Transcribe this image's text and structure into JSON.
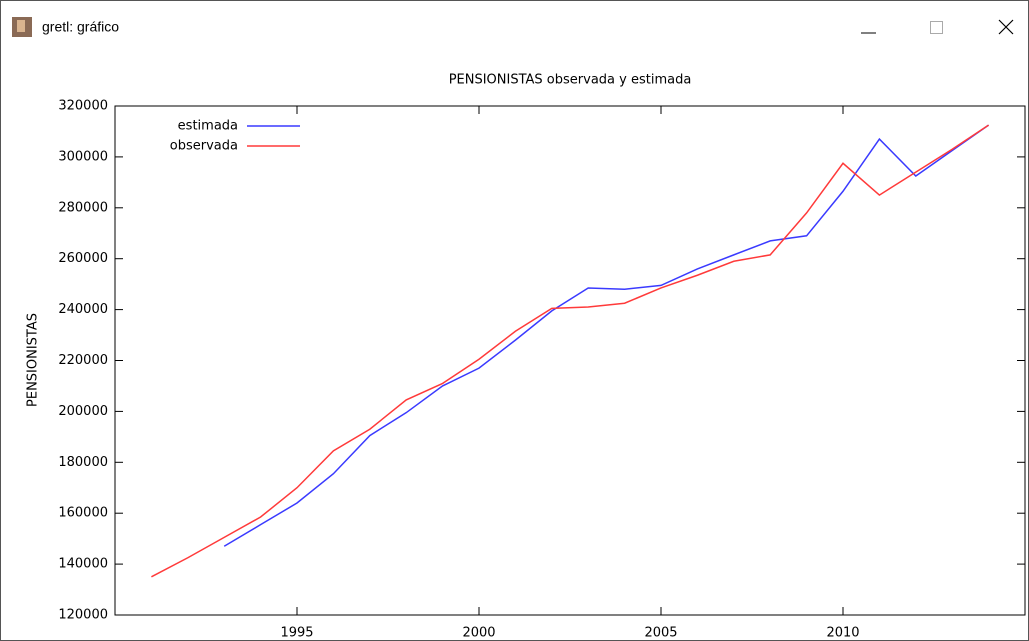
{
  "window": {
    "title": "gretl: gráfico"
  },
  "chart_data": {
    "type": "line",
    "title": "PENSIONISTAS observada y estimada",
    "y_label": "PENSIONISTAS",
    "x": [
      1991,
      1992,
      1993,
      1994,
      1995,
      1996,
      1997,
      1998,
      1999,
      2000,
      2001,
      2002,
      2003,
      2004,
      2005,
      2006,
      2007,
      2008,
      2009,
      2010,
      2011,
      2012,
      2013,
      2014
    ],
    "series": [
      {
        "name": "estimada",
        "color": "#3a3aff",
        "values": [
          null,
          null,
          147000,
          155500,
          164000,
          175500,
          190500,
          199500,
          210000,
          217000,
          228000,
          239500,
          248500,
          248000,
          249500,
          256000,
          261500,
          267000,
          269000,
          286500,
          307000,
          292500,
          302500,
          312500
        ]
      },
      {
        "name": "observada",
        "color": "#ff3a3a",
        "values": [
          135000,
          142500,
          150500,
          158500,
          170000,
          184500,
          193000,
          204500,
          211000,
          220500,
          231500,
          240500,
          241000,
          242500,
          248500,
          253500,
          259000,
          261500,
          278000,
          297500,
          285000,
          294000,
          303000,
          312500
        ]
      }
    ],
    "xlim": [
      1990,
      2015
    ],
    "xticks": [
      1995,
      2000,
      2005,
      2010
    ],
    "ylim": [
      120000,
      320000
    ],
    "yticks": [
      120000,
      140000,
      160000,
      180000,
      200000,
      220000,
      240000,
      260000,
      280000,
      300000,
      320000
    ],
    "legend": "top-left"
  }
}
